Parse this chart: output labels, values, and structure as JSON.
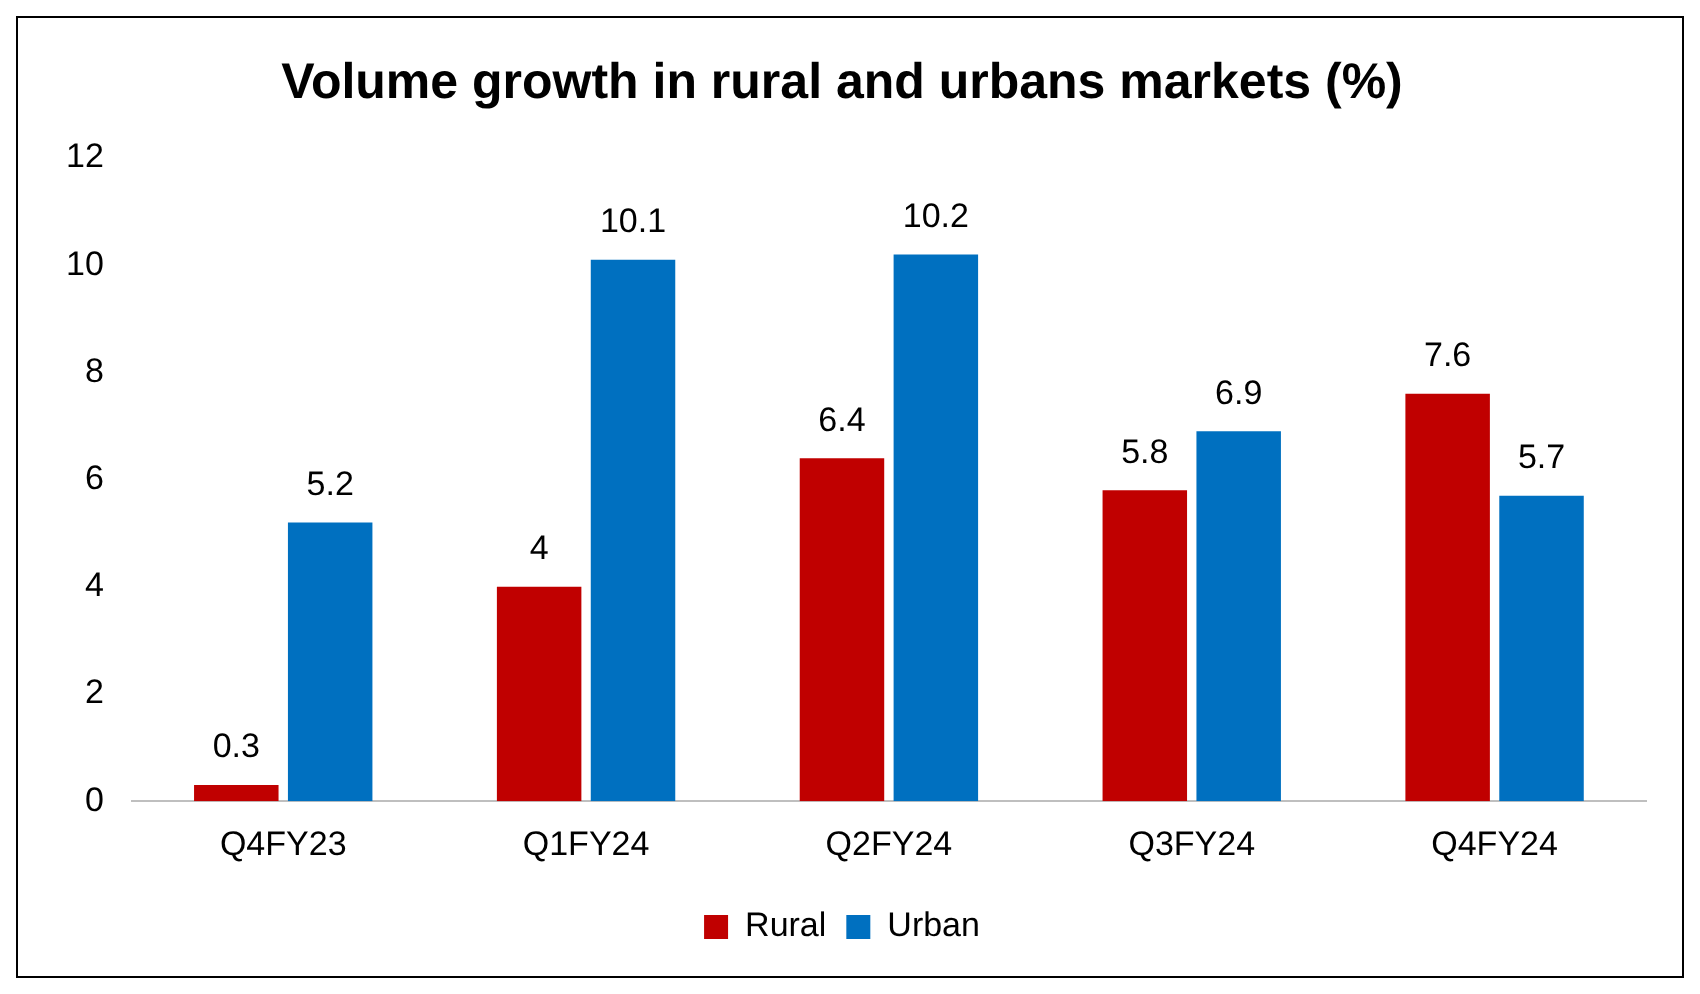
{
  "chart_data": {
    "type": "bar",
    "title": "Volume growth in rural and urbans markets (%)",
    "categories": [
      "Q4FY23",
      "Q1FY24",
      "Q2FY24",
      "Q3FY24",
      "Q4FY24"
    ],
    "series": [
      {
        "name": "Rural",
        "color": "#c00000",
        "values": [
          0.3,
          4,
          6.4,
          5.8,
          7.6
        ]
      },
      {
        "name": "Urban",
        "color": "#0070c0",
        "values": [
          5.2,
          10.1,
          10.2,
          6.9,
          5.7
        ]
      }
    ],
    "ylim": [
      0,
      12
    ],
    "yticks": [
      0,
      2,
      4,
      6,
      8,
      10,
      12
    ],
    "grid": false,
    "legend": "bottom",
    "data_labels": true
  }
}
